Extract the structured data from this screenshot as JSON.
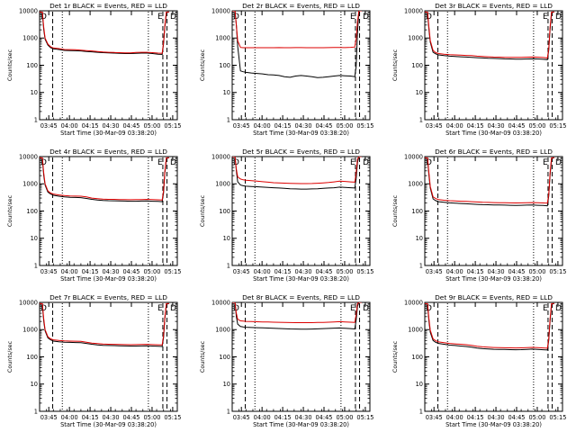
{
  "colors": {
    "events": "#000000",
    "lld": "#dd0000",
    "axes": "#000000",
    "background": "#ffffff"
  },
  "chart_data": {
    "type": "line",
    "layout": "3x3 grid of small multiples",
    "common": {
      "xlabel": "Start Time (30-Mar-09 03:38:20)",
      "ylabel": "Counts/sec",
      "x_ticks": [
        "03:45",
        "04:00",
        "04:15",
        "04:30",
        "04:45",
        "05:00",
        "05:15"
      ],
      "x_tick_minutes": [
        6.67,
        21.67,
        36.67,
        51.67,
        66.67,
        81.67,
        96.67
      ],
      "xlim_minutes": [
        0,
        100
      ],
      "y_scale": "log",
      "y_ticks": [
        "1",
        "10",
        "100",
        "1000",
        "10000"
      ],
      "ylim": [
        1,
        10000
      ],
      "dashed_vlines_minutes": [
        9.5,
        89.5,
        92.5
      ],
      "dotted_vlines_minutes": [
        16.5,
        79.0
      ],
      "corner_markers": {
        "left": "D",
        "right_inner": "E",
        "right_outer": "D"
      },
      "x_minutes": [
        0,
        1,
        2,
        3,
        4,
        6,
        8,
        10,
        14,
        18,
        22,
        26,
        30,
        34,
        38,
        42,
        46,
        50,
        54,
        58,
        62,
        66,
        70,
        74,
        78,
        82,
        86,
        89,
        90,
        91,
        92,
        93,
        94
      ]
    },
    "panels": [
      {
        "title": "Det 1r BLACK = Events, RED = LLD",
        "series": [
          {
            "name": "Events",
            "values": [
              8000,
              8000,
              8000,
              2000,
              900,
              550,
              440,
              400,
              380,
              350,
              345,
              340,
              335,
              320,
              310,
              300,
              290,
              285,
              280,
              275,
              270,
              270,
              275,
              280,
              280,
              270,
              255,
              250,
              600,
              2500,
              8000,
              9000,
              9000
            ]
          },
          {
            "name": "LLD",
            "values": [
              9000,
              9000,
              9000,
              2500,
              1000,
              600,
              480,
              430,
              410,
              380,
              375,
              370,
              360,
              345,
              335,
              320,
              305,
              300,
              295,
              290,
              285,
              285,
              295,
              300,
              300,
              290,
              280,
              275,
              700,
              3000,
              9000,
              9000,
              9000
            ]
          }
        ]
      },
      {
        "title": "Det 2r BLACK = Events, RED = LLD",
        "series": [
          {
            "name": "Events",
            "values": [
              10000,
              10000,
              10000,
              3000,
              500,
              62,
              58,
              55,
              52,
              50,
              48,
              45,
              44,
              42,
              38,
              36,
              40,
              42,
              40,
              38,
              35,
              36,
              38,
              40,
              42,
              41,
              40,
              38,
              90,
              1500,
              10000,
              10000,
              10000
            ]
          },
          {
            "name": "LLD",
            "values": [
              10000,
              10000,
              10000,
              3000,
              800,
              450,
              440,
              440,
              440,
              440,
              440,
              440,
              440,
              445,
              440,
              440,
              445,
              445,
              440,
              440,
              440,
              440,
              445,
              450,
              450,
              445,
              455,
              470,
              900,
              4000,
              10000,
              10000,
              10000
            ]
          }
        ]
      },
      {
        "title": "Det 3r BLACK = Events, RED = LLD",
        "series": [
          {
            "name": "Events",
            "values": [
              8000,
              8000,
              8000,
              2000,
              700,
              300,
              260,
              240,
              225,
              215,
              210,
              205,
              200,
              195,
              190,
              185,
              180,
              178,
              175,
              172,
              170,
              168,
              168,
              170,
              172,
              170,
              165,
              160,
              350,
              2000,
              8000,
              9000,
              9000
            ]
          },
          {
            "name": "LLD",
            "values": [
              9000,
              9000,
              9000,
              2500,
              800,
              350,
              290,
              270,
              255,
              245,
              240,
              235,
              230,
              225,
              215,
              210,
              205,
              200,
              198,
              196,
              195,
              194,
              195,
              198,
              200,
              198,
              192,
              185,
              400,
              2500,
              9000,
              9000,
              9000
            ]
          }
        ]
      },
      {
        "title": "Det 4r BLACK = Events, RED = LLD",
        "series": [
          {
            "name": "Events",
            "values": [
              8000,
              8000,
              8000,
              2000,
              900,
              500,
              420,
              380,
              350,
              330,
              320,
              315,
              310,
              290,
              270,
              255,
              245,
              240,
              238,
              235,
              232,
              230,
              230,
              232,
              235,
              230,
              225,
              220,
              450,
              2500,
              8000,
              9000,
              9000
            ]
          },
          {
            "name": "LLD",
            "values": [
              9000,
              9000,
              9000,
              2500,
              1000,
              550,
              460,
              420,
              390,
              370,
              360,
              355,
              350,
              330,
              300,
              285,
              275,
              270,
              268,
              265,
              262,
              260,
              262,
              265,
              268,
              262,
              258,
              255,
              550,
              3000,
              9000,
              9000,
              9000
            ]
          }
        ]
      },
      {
        "title": "Det 5r BLACK = Events, RED = LLD",
        "series": [
          {
            "name": "Events",
            "values": [
              10000,
              10000,
              10000,
              3000,
              1200,
              900,
              850,
              820,
              800,
              780,
              760,
              740,
              720,
              700,
              680,
              660,
              650,
              640,
              640,
              650,
              660,
              680,
              700,
              720,
              760,
              740,
              720,
              700,
              1500,
              6000,
              10000,
              10000,
              10000
            ]
          },
          {
            "name": "LLD",
            "values": [
              10000,
              10000,
              10000,
              3500,
              1800,
              1500,
              1400,
              1350,
              1300,
              1250,
              1200,
              1150,
              1100,
              1080,
              1060,
              1040,
              1030,
              1020,
              1020,
              1030,
              1050,
              1080,
              1120,
              1180,
              1250,
              1220,
              1180,
              1150,
              2500,
              8000,
              10000,
              10000,
              10000
            ]
          }
        ]
      },
      {
        "title": "Det 6r BLACK = Events, RED = LLD",
        "series": [
          {
            "name": "Events",
            "values": [
              8000,
              8000,
              8000,
              2000,
              700,
              280,
              240,
              220,
              210,
              200,
              195,
              190,
              185,
              180,
              175,
              172,
              170,
              168,
              166,
              165,
              163,
              162,
              163,
              165,
              166,
              163,
              160,
              156,
              350,
              2000,
              8000,
              9000,
              9000
            ]
          },
          {
            "name": "LLD",
            "values": [
              9000,
              9000,
              9000,
              2500,
              800,
              330,
              285,
              265,
              250,
              240,
              235,
              230,
              225,
              220,
              215,
              210,
              207,
              205,
              203,
              202,
              200,
              198,
              200,
              203,
              205,
              202,
              198,
              195,
              400,
              2500,
              9000,
              9000,
              9000
            ]
          }
        ]
      },
      {
        "title": "Det 7r BLACK = Events, RED = LLD",
        "series": [
          {
            "name": "Events",
            "values": [
              8000,
              8000,
              8000,
              2000,
              900,
              500,
              420,
              380,
              360,
              345,
              340,
              335,
              330,
              310,
              290,
              275,
              265,
              260,
              258,
              255,
              252,
              250,
              250,
              252,
              255,
              250,
              245,
              240,
              500,
              2500,
              8000,
              9000,
              9000
            ]
          },
          {
            "name": "LLD",
            "values": [
              9000,
              9000,
              9000,
              2500,
              1000,
              550,
              460,
              420,
              400,
              385,
              380,
              375,
              370,
              345,
              320,
              305,
              295,
              290,
              288,
              285,
              282,
              280,
              282,
              285,
              288,
              282,
              278,
              275,
              600,
              3000,
              9000,
              9000,
              9000
            ]
          }
        ]
      },
      {
        "title": "Det 8r BLACK = Events, RED = LLD",
        "series": [
          {
            "name": "Events",
            "values": [
              10000,
              10000,
              10000,
              3000,
              1600,
              1300,
              1250,
              1220,
              1200,
              1180,
              1160,
              1140,
              1120,
              1100,
              1080,
              1060,
              1050,
              1040,
              1040,
              1050,
              1070,
              1090,
              1110,
              1130,
              1150,
              1120,
              1090,
              1060,
              2200,
              7000,
              10000,
              10000,
              10000
            ]
          },
          {
            "name": "LLD",
            "values": [
              10000,
              10000,
              10000,
              4000,
              2400,
              2100,
              2050,
              2000,
              1980,
              1950,
              1920,
              1900,
              1880,
              1860,
              1840,
              1820,
              1810,
              1800,
              1800,
              1810,
              1830,
              1850,
              1880,
              1920,
              1960,
              1920,
              1880,
              1850,
              3500,
              9000,
              10000,
              10000,
              10000
            ]
          }
        ]
      },
      {
        "title": "Det 9r BLACK = Events, RED = LLD",
        "series": [
          {
            "name": "Events",
            "values": [
              8000,
              8000,
              8000,
              2000,
              800,
              400,
              340,
              310,
              290,
              270,
              260,
              250,
              240,
              225,
              210,
              200,
              195,
              190,
              188,
              186,
              184,
              182,
              184,
              188,
              192,
              188,
              182,
              178,
              400,
              2000,
              8000,
              9000,
              9000
            ]
          },
          {
            "name": "LLD",
            "values": [
              9000,
              9000,
              9000,
              2500,
              950,
              460,
              390,
              355,
              330,
              310,
              300,
              290,
              280,
              262,
              245,
              233,
              226,
              220,
              218,
              216,
              214,
              212,
              214,
              218,
              222,
              218,
              212,
              208,
              450,
              2500,
              9000,
              9000,
              9000
            ]
          }
        ]
      }
    ]
  }
}
